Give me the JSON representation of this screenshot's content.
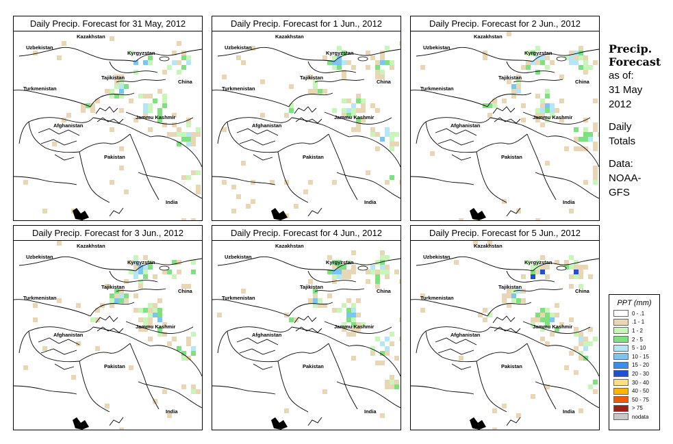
{
  "panels": [
    {
      "title": "Daily Precip. Forecast for  31 May, 2012",
      "seed": 11,
      "extra": 0
    },
    {
      "title": "Daily Precip. Forecast for  1 Jun., 2012",
      "seed": 23,
      "extra": 0
    },
    {
      "title": "Daily Precip. Forecast for  2 Jun., 2012",
      "seed": 37,
      "extra": 0
    },
    {
      "title": "Daily Precip. Forecast for  3 Jun., 2012",
      "seed": 41,
      "extra": 0
    },
    {
      "title": "Daily Precip. Forecast for  4 Jun., 2012",
      "seed": 53,
      "extra": 0
    },
    {
      "title": "Daily Precip. Forecast for  5 Jun., 2012",
      "seed": 67,
      "extra": 1
    }
  ],
  "map_labels": {
    "kazakhstan": "Kazakhstan",
    "uzbekistan": "Uzbekistan",
    "kyrgyzstan": "Kyrgyzstan",
    "tajikistan": "Tajikistan",
    "turkmenistan": "Turkmenistan",
    "china": "China",
    "jammu_kashmir": "Jammu Kashmir",
    "afghanistan": "Afghanistan",
    "pakistan": "Pakistan",
    "india": "India"
  },
  "sidebar": {
    "title_line1": "Precip.",
    "title_line2": "Forecast",
    "asof": "as of:",
    "date1": "31 May",
    "date2": "2012",
    "daily": "Daily",
    "totals": "Totals",
    "data_label": "Data:",
    "source1": "NOAA-",
    "source2": "GFS"
  },
  "legend": {
    "title": "PPT (mm)",
    "items": [
      {
        "label": "0 - .1",
        "color": "#ffffff"
      },
      {
        "label": ".1 - 1",
        "color": "#e8d6b4"
      },
      {
        "label": "1 - 2",
        "color": "#c8f5b8"
      },
      {
        "label": "2 - 5",
        "color": "#7ee07e"
      },
      {
        "label": "5 - 10",
        "color": "#b4e6f8"
      },
      {
        "label": "10 - 15",
        "color": "#7cc4f2"
      },
      {
        "label": "15 - 20",
        "color": "#3c8cee"
      },
      {
        "label": "20 - 30",
        "color": "#1e50d2"
      },
      {
        "label": "30 - 40",
        "color": "#ffe080"
      },
      {
        "label": "40 - 50",
        "color": "#ffb400"
      },
      {
        "label": "50 - 75",
        "color": "#f05a00"
      },
      {
        "label": "> 75",
        "color": "#a01e14"
      },
      {
        "label": "nodata",
        "color": "#c8c8c8"
      }
    ]
  }
}
